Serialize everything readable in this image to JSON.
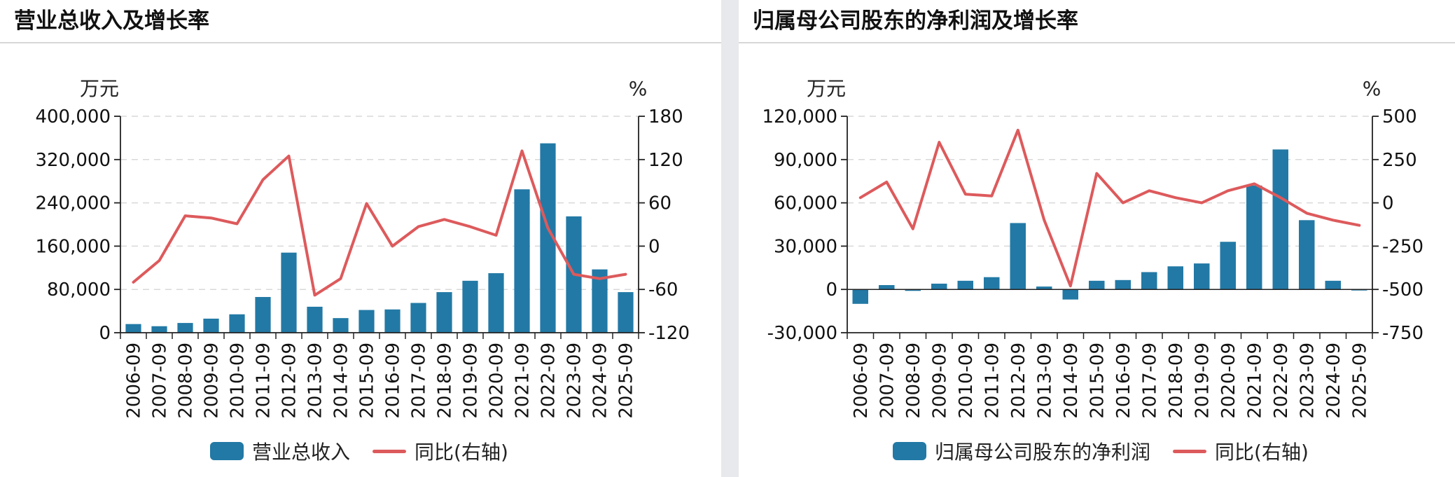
{
  "colors": {
    "bar": "#2279a5",
    "line": "#dd5a5c",
    "grid": "#d9d9d9",
    "axis": "#222222"
  },
  "panels": [
    {
      "title": "营业总收入及增长率",
      "legend": {
        "bar_label": "营业总收入",
        "line_label": "同比(右轴)"
      },
      "chart_data": {
        "type": "bar+line",
        "categories": [
          "2006-09",
          "2007-09",
          "2008-09",
          "2009-09",
          "2010-09",
          "2011-09",
          "2012-09",
          "2013-09",
          "2014-09",
          "2015-09",
          "2016-09",
          "2017-09",
          "2018-09",
          "2019-09",
          "2020-09",
          "2021-09",
          "2022-09",
          "2023-09",
          "2024-09",
          "2025-09"
        ],
        "series": [
          {
            "name": "营业总收入",
            "axis": "left",
            "kind": "bar",
            "values": [
              16000,
              12000,
              18000,
              26000,
              34000,
              66000,
              148000,
              48000,
              27000,
              42000,
              43000,
              55000,
              75000,
              96000,
              110000,
              265000,
              350000,
              215000,
              117000,
              75000
            ]
          },
          {
            "name": "同比(右轴)",
            "axis": "right",
            "kind": "line",
            "values": [
              -50,
              -20,
              42,
              39,
              31,
              92,
              125,
              -68,
              -45,
              59,
              0,
              27,
              37,
              27,
              15,
              132,
              25,
              -39,
              -45,
              -39
            ]
          }
        ],
        "y_left": {
          "unit": "万元",
          "ylim": [
            0,
            400000
          ],
          "ticks": [
            0,
            80000,
            160000,
            240000,
            320000,
            400000
          ],
          "tick_labels": [
            "0",
            "80,000",
            "160,000",
            "240,000",
            "320,000",
            "400,000"
          ]
        },
        "y_right": {
          "unit": "%",
          "ylim": [
            -120,
            180
          ],
          "ticks": [
            -120,
            -60,
            0,
            60,
            120,
            180
          ],
          "tick_labels": [
            "-120",
            "-60",
            "0",
            "60",
            "120",
            "180"
          ]
        },
        "grid": true,
        "legend_position": "bottom-center"
      }
    },
    {
      "title": "归属母公司股东的净利润及增长率",
      "legend": {
        "bar_label": "归属母公司股东的净利润",
        "line_label": "同比(右轴)"
      },
      "chart_data": {
        "type": "bar+line",
        "categories": [
          "2006-09",
          "2007-09",
          "2008-09",
          "2009-09",
          "2010-09",
          "2011-09",
          "2012-09",
          "2013-09",
          "2014-09",
          "2015-09",
          "2016-09",
          "2017-09",
          "2018-09",
          "2019-09",
          "2020-09",
          "2021-09",
          "2022-09",
          "2023-09",
          "2024-09",
          "2025-09"
        ],
        "series": [
          {
            "name": "归属母公司股东的净利润",
            "axis": "left",
            "kind": "bar",
            "values": [
              -10000,
              3000,
              -1000,
              4000,
              6000,
              8500,
              46000,
              2000,
              -7000,
              6000,
              6500,
              12000,
              16000,
              18000,
              33000,
              72000,
              97000,
              48000,
              6000,
              -500
            ]
          },
          {
            "name": "同比(右轴)",
            "axis": "right",
            "kind": "line",
            "values": [
              30,
              120,
              -150,
              350,
              50,
              40,
              420,
              -100,
              -480,
              170,
              0,
              70,
              30,
              0,
              70,
              110,
              30,
              -60,
              -100,
              -130
            ]
          }
        ],
        "y_left": {
          "unit": "万元",
          "ylim": [
            -30000,
            120000
          ],
          "ticks": [
            -30000,
            0,
            30000,
            60000,
            90000,
            120000
          ],
          "tick_labels": [
            "-30,000",
            "0",
            "30,000",
            "60,000",
            "90,000",
            "120,000"
          ]
        },
        "y_right": {
          "unit": "%",
          "ylim": [
            -750,
            500
          ],
          "ticks": [
            -750,
            -500,
            -250,
            0,
            250,
            500
          ],
          "tick_labels": [
            "-750",
            "-500",
            "-250",
            "0",
            "250",
            "500"
          ]
        },
        "grid": true,
        "legend_position": "bottom-center"
      }
    }
  ]
}
